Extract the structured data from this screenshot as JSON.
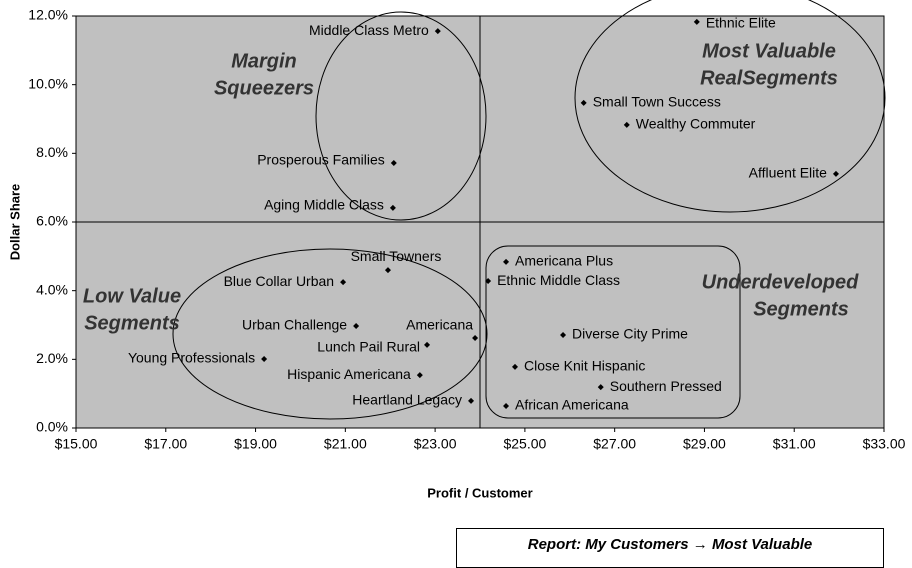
{
  "chart_data": {
    "type": "scatter",
    "x_label": "Profit / Customer",
    "y_label": "Dollar Share",
    "labels": [
      "Middle Class Metro",
      "Ethnic Elite",
      "Small Town Success",
      "Wealthy Commuter",
      "Affluent Elite",
      "Prosperous Families",
      "Aging Middle Class",
      "Small Towners",
      "Blue Collar Urban",
      "Urban Challenge",
      "Americana",
      "Lunch Pail Rural",
      "Young Professionals",
      "Hispanic Americana",
      "Heartland Legacy",
      "Americana Plus",
      "Ethnic Middle Class",
      "Diverse City Prime",
      "Close Knit Hispanic",
      "Southern Pressed",
      "African Americana"
    ],
    "x": [
      23.06,
      28.83,
      26.31,
      27.27,
      31.93,
      22.08,
      22.06,
      21.95,
      20.95,
      21.24,
      23.89,
      22.82,
      19.19,
      22.66,
      23.8,
      24.58,
      24.18,
      25.85,
      24.78,
      26.69,
      24.58
    ],
    "values": [
      11.56,
      11.83,
      9.47,
      8.83,
      7.4,
      7.72,
      6.41,
      4.6,
      4.25,
      2.97,
      2.62,
      2.42,
      2.01,
      1.54,
      0.79,
      4.84,
      4.28,
      2.71,
      1.78,
      1.19,
      0.64
    ],
    "color": "#000000",
    "xlim": [
      15,
      33
    ],
    "ylim": [
      0,
      12
    ],
    "xticks": [
      {
        "value": 15,
        "label": "$15.00"
      },
      {
        "value": 17,
        "label": "$17.00"
      },
      {
        "value": 19,
        "label": "$19.00"
      },
      {
        "value": 21,
        "label": "$21.00"
      },
      {
        "value": 23,
        "label": "$23.00"
      },
      {
        "value": 25,
        "label": "$25.00"
      },
      {
        "value": 27,
        "label": "$27.00"
      },
      {
        "value": 29,
        "label": "$29.00"
      },
      {
        "value": 31,
        "label": "$31.00"
      },
      {
        "value": 33,
        "label": "$33.00"
      }
    ],
    "yticks": [
      {
        "value": 0,
        "label": "0.0%"
      },
      {
        "value": 2,
        "label": "2.0%"
      },
      {
        "value": 4,
        "label": "4.0%"
      },
      {
        "value": 6,
        "label": "6.0%"
      },
      {
        "value": 8,
        "label": "8.0%"
      },
      {
        "value": 10,
        "label": "10.0%"
      },
      {
        "value": 12,
        "label": "12.0%"
      }
    ],
    "quadrant_x": 24,
    "quadrant_y": 6,
    "annotations": [
      [
        "Margin",
        "Squeezers"
      ],
      [
        "Most Valuable",
        "RealSegments"
      ],
      [
        "Low Value",
        "Segments"
      ],
      [
        "Underdeveloped",
        "Segments"
      ]
    ]
  },
  "footer": "Report: My Customers → Most Valuable"
}
